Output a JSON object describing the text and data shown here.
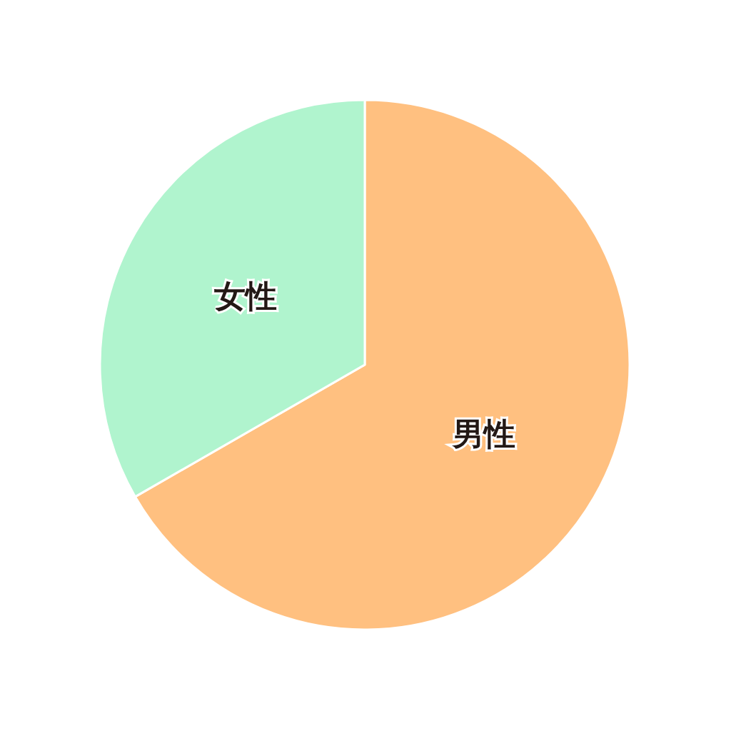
{
  "chart_data": {
    "type": "pie",
    "categories": [
      "男性",
      "女性"
    ],
    "values": [
      66.7,
      33.3
    ],
    "colors": [
      "#ffc080",
      "#b0f4ce"
    ]
  }
}
